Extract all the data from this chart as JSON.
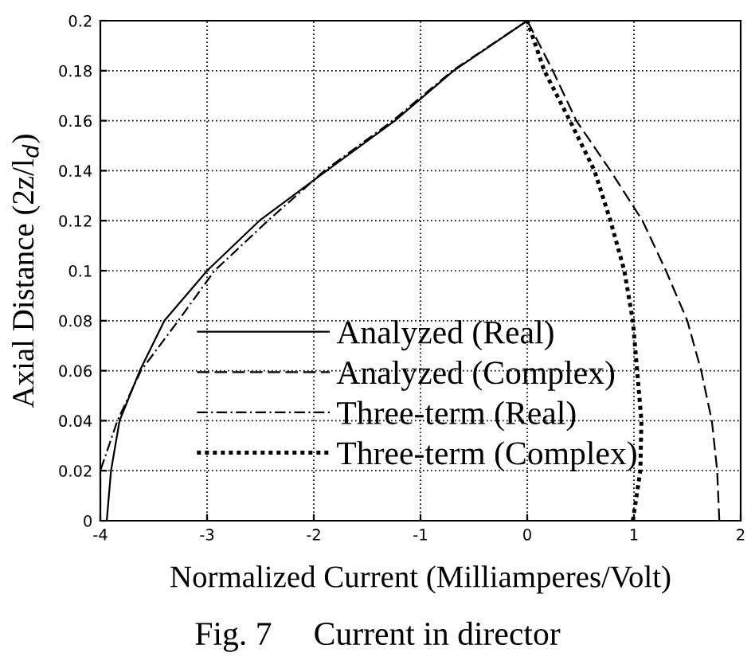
{
  "chart_data": {
    "type": "line",
    "xlabel": "Normalized Current (Milliamperes/Volt)",
    "ylabel": "Axial Distance (2z/l$_{d}$)",
    "annotations": [
      "Fig. 7     Current in director"
    ],
    "xlim": [
      -4,
      2
    ],
    "ylim": [
      0,
      0.2
    ],
    "xticks": [
      -4,
      -3,
      -2,
      -1,
      0,
      1,
      2
    ],
    "yticks": [
      0,
      0.02,
      0.04,
      0.06,
      0.08,
      0.1,
      0.12,
      0.14,
      0.16,
      0.18,
      0.2
    ],
    "grid": true,
    "legend": "center",
    "marker": "none",
    "series": [
      {
        "name": "Analyzed (Real)",
        "color": "#000000",
        "line_style": "solid",
        "x": [
          -3.94,
          -3.9,
          -3.82,
          -3.63,
          -3.4,
          -3.0,
          -2.51,
          -1.88,
          -1.24,
          -0.69,
          0
        ],
        "values": [
          0,
          0.02,
          0.04,
          0.06,
          0.08,
          0.1,
          0.12,
          0.14,
          0.16,
          0.18,
          0.2
        ]
      },
      {
        "name": "Analyzed (Complex)",
        "color": "#000000",
        "line_style": "dashed",
        "x": [
          1.8,
          1.78,
          1.73,
          1.63,
          1.5,
          1.3,
          1.08,
          0.78,
          0.46,
          0.24,
          0
        ],
        "values": [
          0,
          0.02,
          0.04,
          0.06,
          0.08,
          0.1,
          0.12,
          0.14,
          0.16,
          0.18,
          0.2
        ]
      },
      {
        "name": "Three-term (Real)",
        "color": "#000000",
        "line_style": "dashdot",
        "x": [
          -4.0,
          -4.0,
          -3.84,
          -3.62,
          -3.27,
          -2.93,
          -2.43,
          -1.9,
          -1.26,
          -0.7,
          0
        ],
        "values": [
          0.005,
          0.02,
          0.04,
          0.06,
          0.08,
          0.1,
          0.12,
          0.14,
          0.16,
          0.18,
          0.2
        ]
      },
      {
        "name": "Three-term (Complex)",
        "color": "#000000",
        "line_style": "dotted",
        "x": [
          0.99,
          1.06,
          1.07,
          1.03,
          0.99,
          0.91,
          0.78,
          0.63,
          0.4,
          0.16,
          0
        ],
        "values": [
          0,
          0.02,
          0.04,
          0.06,
          0.08,
          0.1,
          0.12,
          0.14,
          0.16,
          0.18,
          0.2
        ]
      }
    ]
  }
}
